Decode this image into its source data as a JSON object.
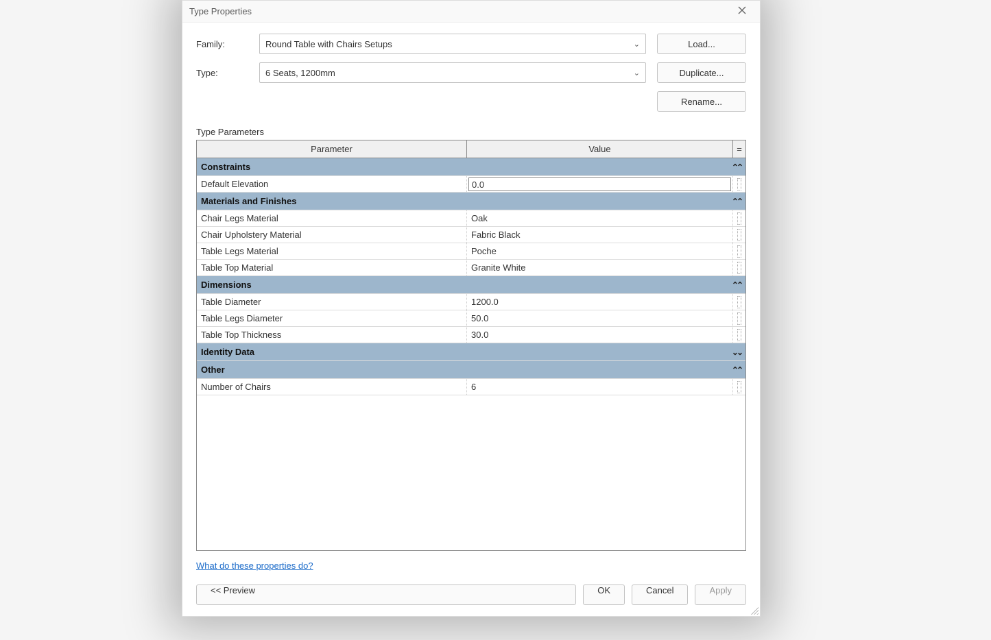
{
  "dialog": {
    "title": "Type Properties",
    "family_label": "Family:",
    "type_label": "Type:",
    "family_value": "Round Table with Chairs Setups",
    "type_value": "6 Seats, 1200mm",
    "load_btn": "Load...",
    "duplicate_btn": "Duplicate...",
    "rename_btn": "Rename...",
    "params_label": "Type Parameters",
    "header_parameter": "Parameter",
    "header_value": "Value",
    "header_eq": "=",
    "help_link": "What do these properties do?",
    "preview_btn": "<< Preview",
    "ok_btn": "OK",
    "cancel_btn": "Cancel",
    "apply_btn": "Apply"
  },
  "colors": {
    "group_header_bg": "#9db6cc",
    "grid_border": "#888888",
    "cell_border": "#dcdcdc",
    "link": "#1a6ac9"
  },
  "groups": [
    {
      "name": "Constraints",
      "collapsed": false,
      "collapse_glyph": "⌃⌃",
      "rows": [
        {
          "param": "Default Elevation",
          "value": "0.0",
          "editing": true
        }
      ]
    },
    {
      "name": "Materials and Finishes",
      "collapsed": false,
      "collapse_glyph": "⌃⌃",
      "rows": [
        {
          "param": "Chair Legs Material",
          "value": "Oak"
        },
        {
          "param": "Chair Upholstery Material",
          "value": "Fabric Black"
        },
        {
          "param": "Table Legs Material",
          "value": "Poche"
        },
        {
          "param": "Table Top Material",
          "value": "Granite White"
        }
      ]
    },
    {
      "name": "Dimensions",
      "collapsed": false,
      "collapse_glyph": "⌃⌃",
      "rows": [
        {
          "param": "Table Diameter",
          "value": "1200.0"
        },
        {
          "param": "Table Legs Diameter",
          "value": "50.0"
        },
        {
          "param": "Table Top Thickness",
          "value": "30.0"
        }
      ]
    },
    {
      "name": "Identity Data",
      "collapsed": true,
      "collapse_glyph": "⌄⌄",
      "rows": []
    },
    {
      "name": "Other",
      "collapsed": false,
      "collapse_glyph": "⌃⌃",
      "rows": [
        {
          "param": "Number of Chairs",
          "value": "6"
        }
      ]
    }
  ]
}
